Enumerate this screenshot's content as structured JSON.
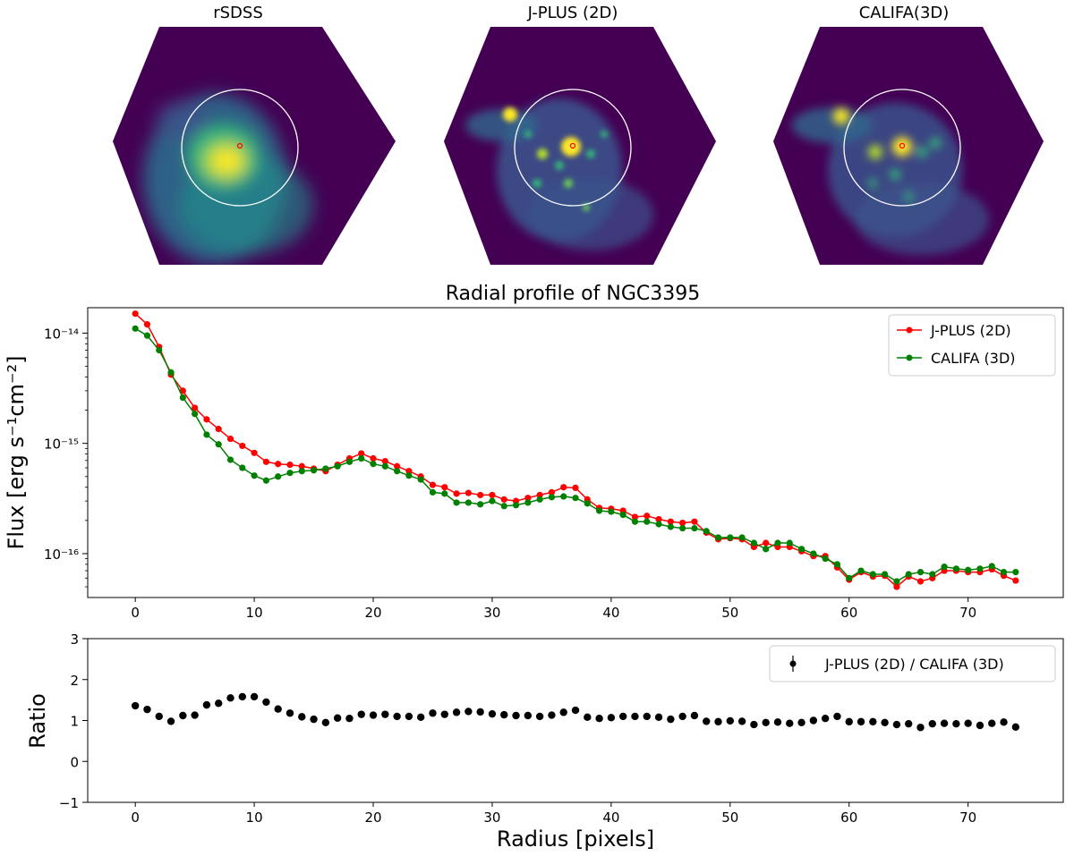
{
  "colors": {
    "jplus": "#ff0000",
    "califa": "#008000",
    "ratio": "#000000",
    "map_background": "#440154",
    "map_mid": "#21918c",
    "map_high": "#fde725",
    "aperture": "#ffffff",
    "center_marker": "#ff0000"
  },
  "images": [
    {
      "title": "rSDSS",
      "style": "smooth"
    },
    {
      "title": "J-PLUS (2D)",
      "style": "knotty"
    },
    {
      "title": "CALIFA(3D)",
      "style": "blurred-knots"
    }
  ],
  "chart_data": [
    {
      "type": "line",
      "title": "Radial profile of NGC3395",
      "xlabel": "",
      "ylabel": "Flux [erg s⁻¹cm⁻²]",
      "yscale": "log",
      "xlim": [
        -4,
        78
      ],
      "ylim": [
        4e-17,
        1.7e-14
      ],
      "xticks": [
        0,
        10,
        20,
        30,
        40,
        50,
        60,
        70
      ],
      "yticks": [
        {
          "value": 1e-14,
          "label": "10⁻¹⁴"
        },
        {
          "value": 1e-15,
          "label": "10⁻¹⁵"
        },
        {
          "value": 1e-16,
          "label": "10⁻¹⁶"
        }
      ],
      "legend_position": "top-right",
      "x": [
        0,
        1,
        2,
        3,
        4,
        5,
        6,
        7,
        8,
        9,
        10,
        11,
        12,
        13,
        14,
        15,
        16,
        17,
        18,
        19,
        20,
        21,
        22,
        23,
        24,
        25,
        26,
        27,
        28,
        29,
        30,
        31,
        32,
        33,
        34,
        35,
        36,
        37,
        38,
        39,
        40,
        41,
        42,
        43,
        44,
        45,
        46,
        47,
        48,
        49,
        50,
        51,
        52,
        53,
        54,
        55,
        56,
        57,
        58,
        59,
        60,
        61,
        62,
        63,
        64,
        65,
        66,
        67,
        68,
        69,
        70,
        71,
        72,
        73,
        74
      ],
      "series": [
        {
          "name": "J-PLUS (2D)",
          "color": "#ff0000",
          "values": [
            1.5e-14,
            1.2e-14,
            7.5e-15,
            4.2e-15,
            3e-15,
            2.1e-15,
            1.65e-15,
            1.35e-15,
            1.1e-15,
            9.5e-16,
            8.2e-16,
            6.8e-16,
            6.5e-16,
            6.4e-16,
            6.2e-16,
            5.9e-16,
            5.6e-16,
            6.4e-16,
            7.3e-16,
            8.1e-16,
            7.3e-16,
            6.9e-16,
            6.2e-16,
            5.6e-16,
            5e-16,
            4.2e-16,
            4e-16,
            3.5e-16,
            3.55e-16,
            3.4e-16,
            3.4e-16,
            3.1e-16,
            3e-16,
            3.2e-16,
            3.4e-16,
            3.6e-16,
            4e-16,
            3.95e-16,
            3.1e-16,
            2.6e-16,
            2.55e-16,
            2.45e-16,
            2.15e-16,
            2.2e-16,
            2.05e-16,
            1.95e-16,
            1.9e-16,
            1.95e-16,
            1.55e-16,
            1.35e-16,
            1.38e-16,
            1.35e-16,
            1.15e-16,
            1.25e-16,
            1.15e-16,
            1.15e-16,
            1.05e-16,
            9.5e-17,
            9.5e-17,
            7.5e-17,
            5.8e-17,
            6.8e-17,
            6.2e-17,
            6.3e-17,
            5e-17,
            6.2e-17,
            5.6e-17,
            6e-17,
            7e-17,
            7e-17,
            6.8e-17,
            6.8e-17,
            7.2e-17,
            6.3e-17,
            5.7e-17
          ]
        },
        {
          "name": "CALIFA (3D)",
          "color": "#008000",
          "values": [
            1.1e-14,
            9.5e-15,
            7e-15,
            4.4e-15,
            2.6e-15,
            1.85e-15,
            1.2e-15,
            9.8e-16,
            7.1e-16,
            6e-16,
            5.1e-16,
            4.6e-16,
            5e-16,
            5.4e-16,
            5.6e-16,
            5.7e-16,
            5.9e-16,
            6.2e-16,
            6.8e-16,
            7.3e-16,
            6.5e-16,
            6.2e-16,
            5.6e-16,
            5.1e-16,
            4.7e-16,
            3.6e-16,
            3.5e-16,
            2.9e-16,
            2.9e-16,
            2.8e-16,
            3e-16,
            2.7e-16,
            2.75e-16,
            2.9e-16,
            3.1e-16,
            3.25e-16,
            3.3e-16,
            3.2e-16,
            2.85e-16,
            2.45e-16,
            2.4e-16,
            2.25e-16,
            1.95e-16,
            1.95e-16,
            1.85e-16,
            1.75e-16,
            1.7e-16,
            1.7e-16,
            1.6e-16,
            1.4e-16,
            1.4e-16,
            1.4e-16,
            1.25e-16,
            1.1e-16,
            1.25e-16,
            1.25e-16,
            1.1e-16,
            1e-16,
            9e-17,
            8e-17,
            6e-17,
            7e-17,
            6.5e-17,
            6.5e-17,
            5.6e-17,
            6.5e-17,
            6.8e-17,
            6.5e-17,
            7.6e-17,
            7.3e-17,
            7.1e-17,
            7.3e-17,
            7.7e-17,
            6.8e-17,
            6.8e-17
          ]
        }
      ]
    },
    {
      "type": "scatter",
      "title": "",
      "xlabel": "Radius [pixels]",
      "ylabel": "Ratio",
      "xlim": [
        -4,
        78
      ],
      "ylim": [
        -1,
        3
      ],
      "xticks": [
        0,
        10,
        20,
        30,
        40,
        50,
        60,
        70
      ],
      "yticks": [
        -1,
        0,
        1,
        2,
        3
      ],
      "legend_position": "top-right",
      "series": [
        {
          "name": "J-PLUS (2D) / CALIFA (3D)",
          "color": "#000000",
          "x": [
            0,
            1,
            2,
            3,
            4,
            5,
            6,
            7,
            8,
            9,
            10,
            11,
            12,
            13,
            14,
            15,
            16,
            17,
            18,
            19,
            20,
            21,
            22,
            23,
            24,
            25,
            26,
            27,
            28,
            29,
            30,
            31,
            32,
            33,
            34,
            35,
            36,
            37,
            38,
            39,
            40,
            41,
            42,
            43,
            44,
            45,
            46,
            47,
            48,
            49,
            50,
            51,
            52,
            53,
            54,
            55,
            56,
            57,
            58,
            59,
            60,
            61,
            62,
            63,
            64,
            65,
            66,
            67,
            68,
            69,
            70,
            71,
            72,
            73,
            74
          ],
          "values": [
            1.36,
            1.27,
            1.1,
            0.98,
            1.12,
            1.13,
            1.38,
            1.42,
            1.55,
            1.58,
            1.58,
            1.45,
            1.28,
            1.18,
            1.09,
            1.03,
            0.95,
            1.06,
            1.05,
            1.15,
            1.13,
            1.15,
            1.1,
            1.1,
            1.08,
            1.18,
            1.15,
            1.2,
            1.22,
            1.21,
            1.16,
            1.14,
            1.12,
            1.12,
            1.1,
            1.13,
            1.2,
            1.25,
            1.08,
            1.05,
            1.07,
            1.1,
            1.1,
            1.1,
            1.08,
            1.03,
            1.1,
            1.12,
            0.98,
            0.97,
            0.99,
            0.98,
            0.9,
            0.95,
            0.96,
            0.93,
            0.95,
            1.0,
            1.05,
            1.1,
            0.97,
            0.97,
            0.97,
            0.95,
            0.9,
            0.92,
            0.83,
            0.92,
            0.93,
            0.92,
            0.93,
            0.88,
            0.93,
            0.96,
            0.84
          ]
        }
      ]
    }
  ]
}
